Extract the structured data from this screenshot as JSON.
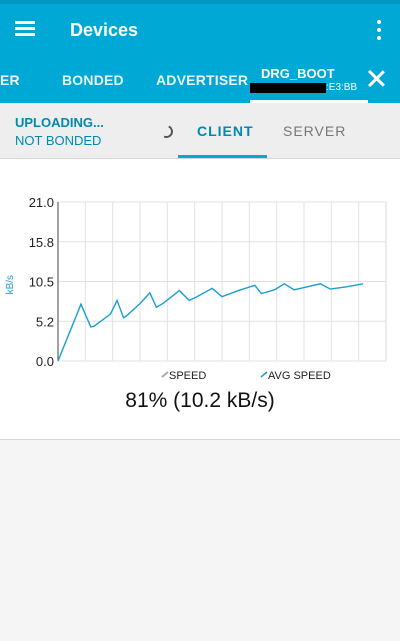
{
  "appbar": {
    "title": "Devices",
    "menu_icon": "hamburger-menu-icon",
    "overflow_icon": "more-vert-icon",
    "tabs": [
      "ER",
      "BONDED",
      "ADVERTISER"
    ],
    "active_tab": {
      "name": "DRG_BOOT",
      "address_suffix": ":E3:BB"
    },
    "close_icon": "close-icon",
    "colors": {
      "primary": "#00a8d6",
      "accent": "#0088b0"
    }
  },
  "connection": {
    "status_line1": "UPLOADING...",
    "status_line2": "NOT BONDED",
    "tabs": [
      "CLIENT",
      "SERVER"
    ],
    "active_tab": "CLIENT"
  },
  "chart_data": {
    "type": "line",
    "ylabel": "kB/s",
    "y_ticks": [
      "21.0",
      "15.8",
      "10.5",
      "5.2",
      "0.0"
    ],
    "ylim": [
      0,
      21
    ],
    "xlim": [
      0,
      100
    ],
    "grid": true,
    "legend": [
      "SPEED",
      "AVG SPEED"
    ],
    "legend_placement": "bottom",
    "series": [
      {
        "name": "AVG SPEED",
        "color": "#1a9ed1",
        "x": [
          0,
          7,
          10,
          11,
          16,
          18,
          20,
          21,
          25,
          28,
          30,
          32,
          37,
          40,
          42,
          47,
          50,
          55,
          60,
          62,
          66,
          69,
          72,
          75,
          80,
          83,
          88,
          93
        ],
        "y": [
          0,
          7.5,
          4.5,
          4.6,
          6.2,
          8.0,
          5.7,
          6.0,
          7.6,
          9.0,
          7.1,
          7.6,
          9.3,
          8.0,
          8.4,
          9.6,
          8.5,
          9.3,
          10.0,
          8.9,
          9.4,
          10.2,
          9.4,
          9.7,
          10.2,
          9.5,
          9.8,
          10.2
        ]
      }
    ],
    "progress_text": "81% (10.2 kB/s)"
  }
}
